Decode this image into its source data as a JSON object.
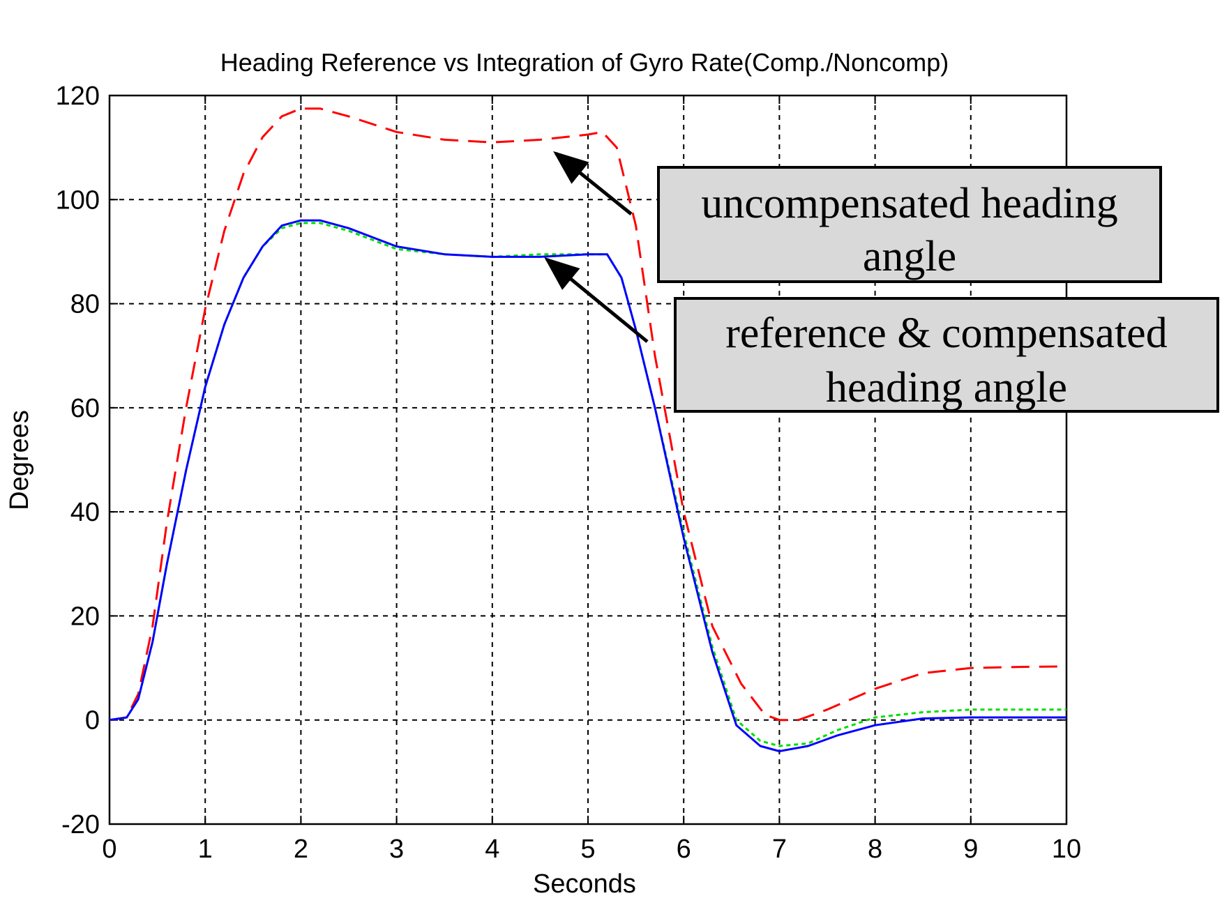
{
  "chart_data": {
    "type": "line",
    "title": "Heading Reference vs Integration of Gyro Rate(Comp./Noncomp)",
    "xlabel": "Seconds",
    "ylabel": "Degrees",
    "xlim": [
      0,
      10
    ],
    "ylim": [
      -20,
      120
    ],
    "xticks": [
      "0",
      "1",
      "2",
      "3",
      "4",
      "5",
      "6",
      "7",
      "8",
      "9",
      "10"
    ],
    "yticks": [
      "120",
      "100",
      "80",
      "60",
      "40",
      "20",
      "0",
      "-20"
    ],
    "grid": true,
    "series": [
      {
        "color": "#ff0000",
        "style": "dashed",
        "x": [
          0,
          0.18,
          0.3,
          0.45,
          0.6,
          0.8,
          1.0,
          1.2,
          1.4,
          1.6,
          1.8,
          2.0,
          2.2,
          2.5,
          3.0,
          3.5,
          4.0,
          4.5,
          5.0,
          5.15,
          5.3,
          5.5,
          5.7,
          6.0,
          6.3,
          6.6,
          6.85,
          7.0,
          7.2,
          7.5,
          8.0,
          8.5,
          9.0,
          9.5,
          10.0
        ],
        "y": [
          0,
          0.5,
          5,
          18,
          38,
          60,
          79,
          94,
          105,
          112,
          116,
          117.5,
          117.5,
          116,
          113,
          111.5,
          111,
          111.5,
          112.5,
          113,
          110,
          95,
          70,
          40,
          18,
          7,
          1,
          0,
          0,
          2,
          6,
          9,
          10,
          10.2,
          10.3
        ]
      },
      {
        "color": "#00dd00",
        "style": "dotted",
        "x": [
          0,
          0.18,
          0.3,
          0.45,
          0.6,
          0.8,
          1.0,
          1.2,
          1.4,
          1.6,
          1.8,
          2.0,
          2.2,
          2.5,
          3.0,
          3.5,
          4.0,
          4.5,
          5.0,
          5.2,
          5.35,
          5.5,
          5.7,
          6.0,
          6.3,
          6.55,
          6.8,
          7.0,
          7.3,
          7.6,
          8.0,
          8.5,
          9.0,
          9.5,
          10.0
        ],
        "y": [
          0,
          0.5,
          4,
          15,
          30,
          48,
          64,
          76,
          85,
          91,
          94.5,
          95.5,
          95.5,
          94,
          90.5,
          89.5,
          89,
          89.5,
          89.5,
          89.5,
          85,
          75,
          60,
          36,
          14,
          0,
          -4,
          -5,
          -4.5,
          -2,
          0.5,
          1.5,
          2,
          2,
          2
        ]
      },
      {
        "color": "#0000ff",
        "style": "solid",
        "x": [
          0,
          0.18,
          0.3,
          0.45,
          0.6,
          0.8,
          1.0,
          1.2,
          1.4,
          1.6,
          1.8,
          2.0,
          2.2,
          2.5,
          3.0,
          3.5,
          4.0,
          4.5,
          5.0,
          5.2,
          5.35,
          5.5,
          5.7,
          6.0,
          6.3,
          6.55,
          6.8,
          7.0,
          7.3,
          7.6,
          8.0,
          8.5,
          9.0,
          9.5,
          10.0
        ],
        "y": [
          0,
          0.5,
          4,
          15,
          30,
          48,
          64,
          76,
          85,
          91,
          95,
          96,
          96,
          94.5,
          91,
          89.5,
          89,
          89,
          89.5,
          89.5,
          85,
          75,
          60,
          35,
          13,
          -1,
          -5,
          -6,
          -5,
          -3,
          -1,
          0.3,
          0.5,
          0.5,
          0.5
        ]
      }
    ],
    "annotations": [
      {
        "lines": [
          "uncompensated heading",
          "angle"
        ],
        "points_to": {
          "x": 4.65,
          "y": 109
        }
      },
      {
        "lines": [
          "reference & compensated",
          "heading angle"
        ],
        "points_to": {
          "x": 4.5,
          "y": 89
        }
      }
    ]
  }
}
